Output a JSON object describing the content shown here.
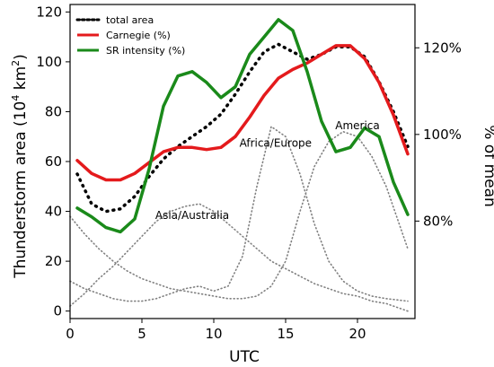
{
  "chart_data": {
    "type": "line",
    "xlabel": "UTC",
    "ylabel_left_main": "Thunderstorm area (10",
    "ylabel_left_sup": "4",
    "ylabel_left_unit": " km",
    "ylabel_left_sup2": "2",
    "ylabel_left_close": ")",
    "ylabel_right": "% of mean",
    "xlim": [
      0,
      24
    ],
    "ylim_left": [
      -3,
      123
    ],
    "ylim_right": [
      57.5,
      130
    ],
    "x_ticks": [
      0,
      5,
      10,
      15,
      20
    ],
    "y_left_ticks": [
      0,
      20,
      40,
      60,
      80,
      100,
      120
    ],
    "y_right_ticks": [
      {
        "value": 80,
        "label": "80%"
      },
      {
        "value": 100,
        "label": "100%"
      },
      {
        "value": 120,
        "label": "120%"
      }
    ],
    "legend_position": "top-left",
    "grid": false,
    "series": [
      {
        "name": "total area",
        "axis": "left",
        "color": "#000000",
        "style": "dotted",
        "x": [
          0.5,
          1.5,
          2.5,
          3.5,
          4.5,
          5.5,
          6.5,
          7.5,
          8.5,
          9.5,
          10.5,
          11.5,
          12.5,
          13.5,
          14.5,
          15.5,
          16.5,
          17.5,
          18.5,
          19.5,
          20.5,
          21.5,
          22.5,
          23.5
        ],
        "y": [
          55,
          43,
          40,
          41,
          46,
          54,
          61,
          66,
          70,
          74,
          79,
          87,
          96,
          104,
          107,
          104,
          101,
          103,
          106,
          106,
          102,
          92,
          80,
          66
        ]
      },
      {
        "name": "Carnegie (%)",
        "axis": "right",
        "color": "#e41a1c",
        "style": "solid",
        "x": [
          0.5,
          1.5,
          2.5,
          3.5,
          4.5,
          5.5,
          6.5,
          7.5,
          8.5,
          9.5,
          10.5,
          11.5,
          12.5,
          13.5,
          14.5,
          15.5,
          16.5,
          17.5,
          18.5,
          19.5,
          20.5,
          21.5,
          22.5,
          23.5
        ],
        "y": [
          94,
          91,
          89.5,
          89.5,
          91,
          93.5,
          96,
          97,
          97,
          96.5,
          97,
          99.5,
          104,
          109,
          113,
          115,
          116.5,
          118.5,
          120.5,
          120.5,
          117.5,
          112,
          104.5,
          95.5
        ]
      },
      {
        "name": "SR intensity (%)",
        "axis": "right",
        "color": "#1a8a1a",
        "style": "solid",
        "x": [
          0.5,
          1.5,
          2.5,
          3.5,
          4.5,
          5.5,
          6.5,
          7.5,
          8.5,
          9.5,
          10.5,
          11.5,
          12.5,
          13.5,
          14.5,
          15.5,
          16.5,
          17.5,
          18.5,
          19.5,
          20.5,
          21.5,
          22.5,
          23.5
        ],
        "y": [
          83,
          81,
          78.5,
          77.5,
          80.5,
          92,
          106.5,
          113.5,
          114.5,
          112,
          108.5,
          111,
          118.5,
          122.5,
          126.5,
          124,
          114.5,
          103,
          96,
          97,
          101.5,
          99.5,
          89,
          81.5
        ]
      },
      {
        "name": "Asia/Australia",
        "axis": "left",
        "color": "#808080",
        "style": "dotted",
        "x": [
          0,
          1,
          2,
          3,
          4,
          5,
          6,
          7,
          8,
          9,
          10,
          11,
          12,
          13,
          14,
          15,
          16,
          17,
          18,
          19,
          20,
          21,
          22,
          23.5
        ],
        "y": [
          2,
          7,
          13,
          18,
          24,
          30,
          36,
          40,
          42,
          43,
          40,
          35,
          30,
          25,
          20,
          17,
          14,
          11,
          9,
          7,
          6,
          4,
          3,
          0
        ]
      },
      {
        "name": "Africa/Europe",
        "axis": "left",
        "color": "#808080",
        "style": "dotted",
        "x": [
          0,
          1,
          2,
          3,
          4,
          5,
          6,
          7,
          8,
          9,
          10,
          11,
          12,
          13,
          14,
          15,
          16,
          17,
          18,
          19,
          20,
          21,
          22,
          23.5
        ],
        "y": [
          12,
          9,
          7,
          5,
          4,
          4,
          5,
          7,
          9,
          10,
          8,
          10,
          22,
          50,
          74,
          70,
          55,
          35,
          20,
          12,
          8,
          6,
          5,
          4
        ]
      },
      {
        "name": "America",
        "axis": "left",
        "color": "#808080",
        "style": "dotted",
        "x": [
          0,
          1,
          2,
          3,
          4,
          5,
          6,
          7,
          8,
          9,
          10,
          11,
          12,
          13,
          14,
          15,
          16,
          17,
          18,
          19,
          20,
          21,
          22,
          23.5
        ],
        "y": [
          38,
          31,
          25,
          20,
          16,
          13,
          11,
          9,
          8,
          7,
          6,
          5,
          5,
          6,
          10,
          20,
          40,
          58,
          68,
          72,
          70,
          62,
          50,
          25
        ]
      }
    ],
    "legend": [
      {
        "label": "total area",
        "color": "#000000",
        "style": "dotted"
      },
      {
        "label": "Carnegie (%)",
        "color": "#e41a1c",
        "style": "solid"
      },
      {
        "label": "SR intensity (%)",
        "color": "#1a8a1a",
        "style": "solid"
      }
    ],
    "annotations": [
      {
        "text": "Asia/Australia",
        "x": 8.5,
        "y": 37
      },
      {
        "text": "Africa/Europe",
        "x": 14.3,
        "y": 66
      },
      {
        "text": "America",
        "x": 20.0,
        "y": 73
      }
    ]
  }
}
